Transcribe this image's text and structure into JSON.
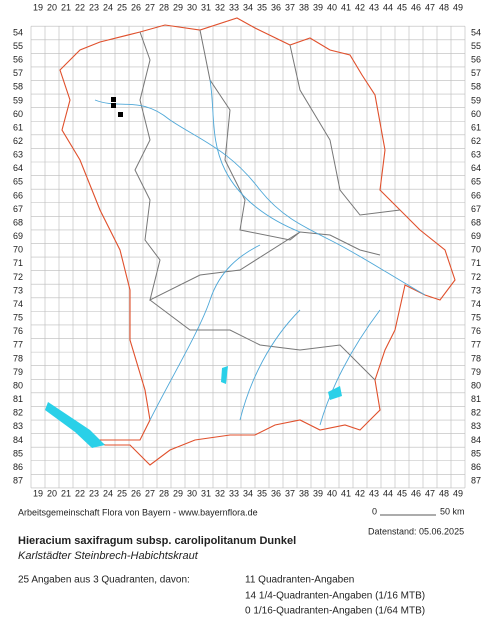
{
  "map": {
    "columns": [
      19,
      20,
      21,
      22,
      23,
      24,
      25,
      26,
      27,
      28,
      29,
      30,
      31,
      32,
      33,
      34,
      35,
      36,
      37,
      38,
      39,
      40,
      41,
      42,
      43,
      44,
      45,
      46,
      47,
      48,
      49
    ],
    "rows": [
      54,
      55,
      56,
      57,
      58,
      59,
      60,
      61,
      62,
      63,
      64,
      65,
      66,
      67,
      68,
      69,
      70,
      71,
      72,
      73,
      74,
      75,
      76,
      77,
      78,
      79,
      80,
      81,
      82,
      83,
      84,
      85,
      86,
      87
    ],
    "credit": "Arbeitsgemeinschaft Flora von Bayern - www.bayernflora.de",
    "scale_start": "0",
    "scale_end": "50 km",
    "date": "Datenstand: 05.06.2025"
  },
  "species": {
    "title": "Hieracium saxifragum subsp. carolipolitanum Dunkel",
    "subtitle": "Karlstädter Steinbrech-Habichtskraut"
  },
  "summary": {
    "total": "25 Angaben aus 3 Quadranten, davon:",
    "lines": [
      "11 Quadranten-Angaben",
      "14 1/4-Quadranten-Angaben (1/16 MTB)",
      "0 1/16-Quadranten-Angaben (1/64 MTB)"
    ]
  }
}
